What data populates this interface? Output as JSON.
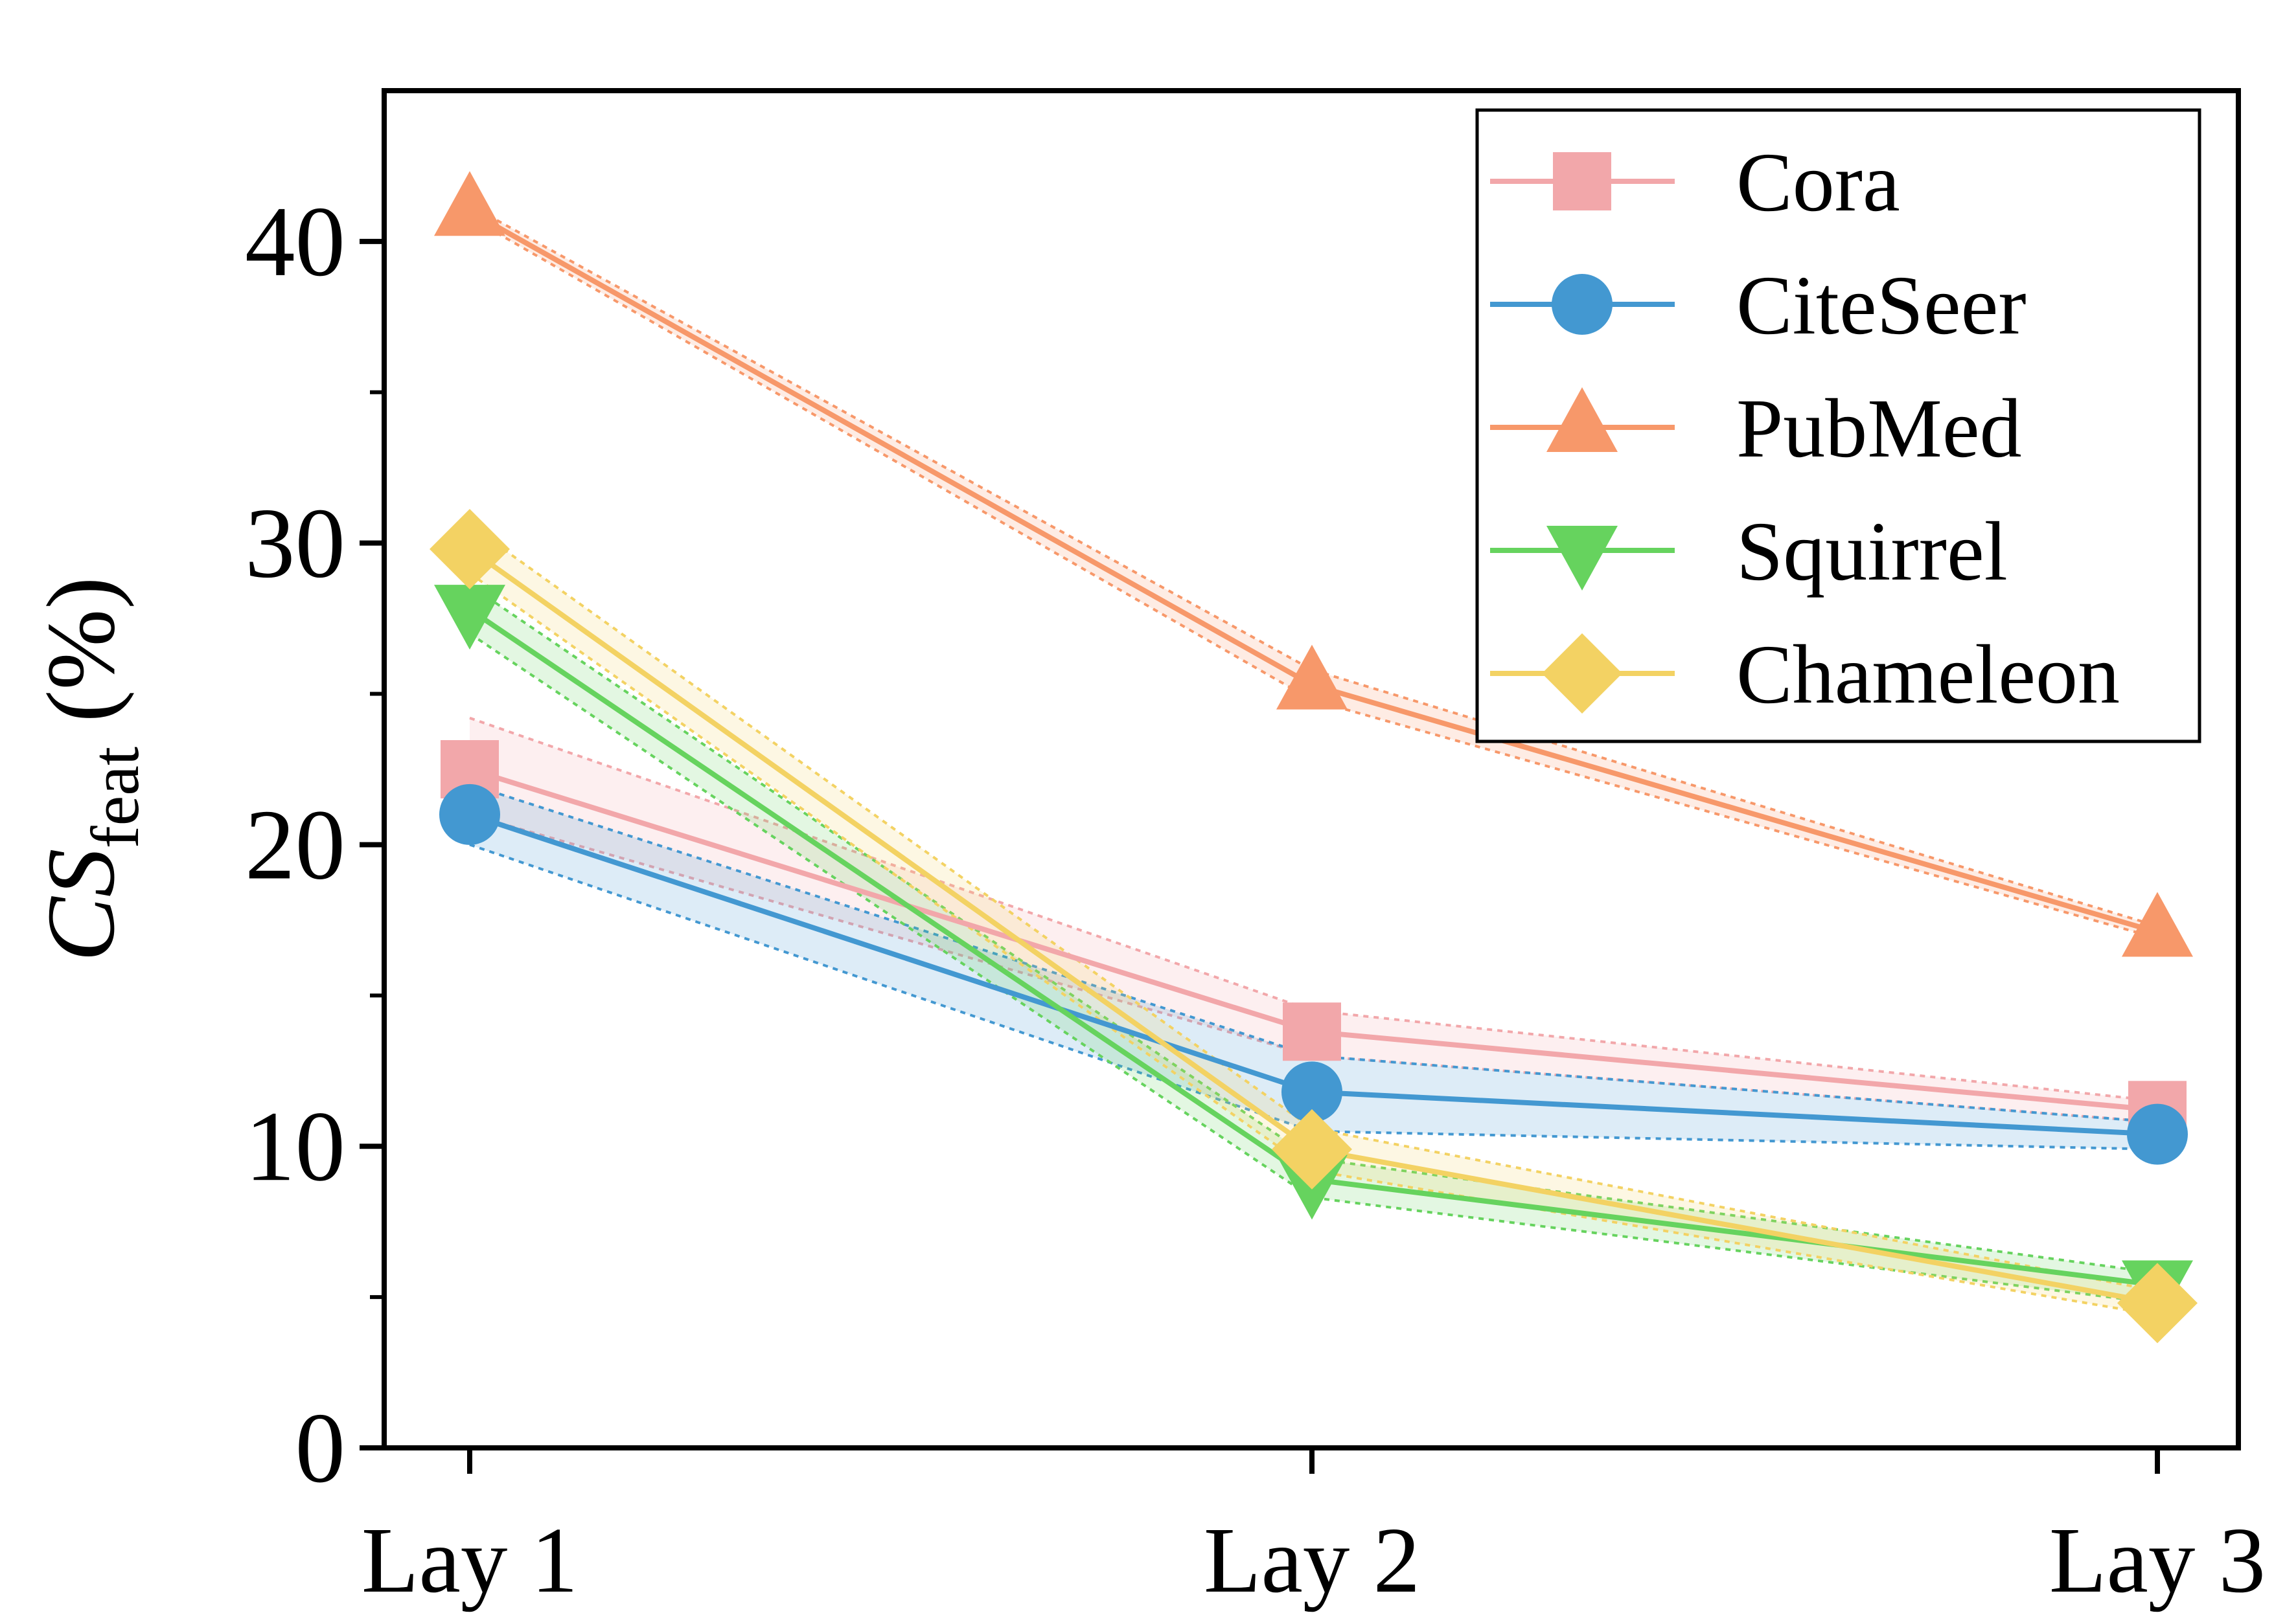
{
  "chart_data": {
    "type": "line",
    "title": "",
    "xlabel": "",
    "ylabel": {
      "main": "CS",
      "sub": "feat",
      "unit": " (%)"
    },
    "categories": [
      "Lay 1",
      "Lay 2",
      "Lay 3"
    ],
    "ylim": [
      0,
      45
    ],
    "yticks": [
      0,
      10,
      20,
      30,
      40
    ],
    "yminor": [
      5,
      15,
      25,
      35
    ],
    "grid": false,
    "legend": "top-right",
    "series": [
      {
        "name": "Cora",
        "marker": "square",
        "color": "#F2A7AA",
        "values": [
          22.5,
          13.8,
          11.2
        ],
        "lower": [
          21.0,
          13.0,
          10.8
        ],
        "upper": [
          24.2,
          14.5,
          11.5
        ]
      },
      {
        "name": "CiteSeer",
        "marker": "circle",
        "color": "#4398D1",
        "values": [
          21.0,
          11.8,
          10.4
        ],
        "lower": [
          20.0,
          10.5,
          9.9
        ],
        "upper": [
          22.0,
          13.0,
          10.8
        ]
      },
      {
        "name": "PubMed",
        "marker": "triangle-up",
        "color": "#F7986A",
        "values": [
          41.0,
          25.3,
          17.1
        ],
        "lower": [
          40.8,
          24.8,
          16.9
        ],
        "upper": [
          41.2,
          25.8,
          17.3
        ]
      },
      {
        "name": "Squirrel",
        "marker": "triangle-down",
        "color": "#66D35E",
        "values": [
          27.8,
          8.9,
          5.4
        ],
        "lower": [
          27.0,
          8.3,
          4.8
        ],
        "upper": [
          28.6,
          9.6,
          5.8
        ]
      },
      {
        "name": "Chameleon",
        "marker": "diamond",
        "color": "#F3D263",
        "values": [
          29.8,
          9.9,
          4.8
        ],
        "lower": [
          29.0,
          9.2,
          4.4
        ],
        "upper": [
          30.6,
          10.6,
          5.2
        ]
      }
    ]
  }
}
